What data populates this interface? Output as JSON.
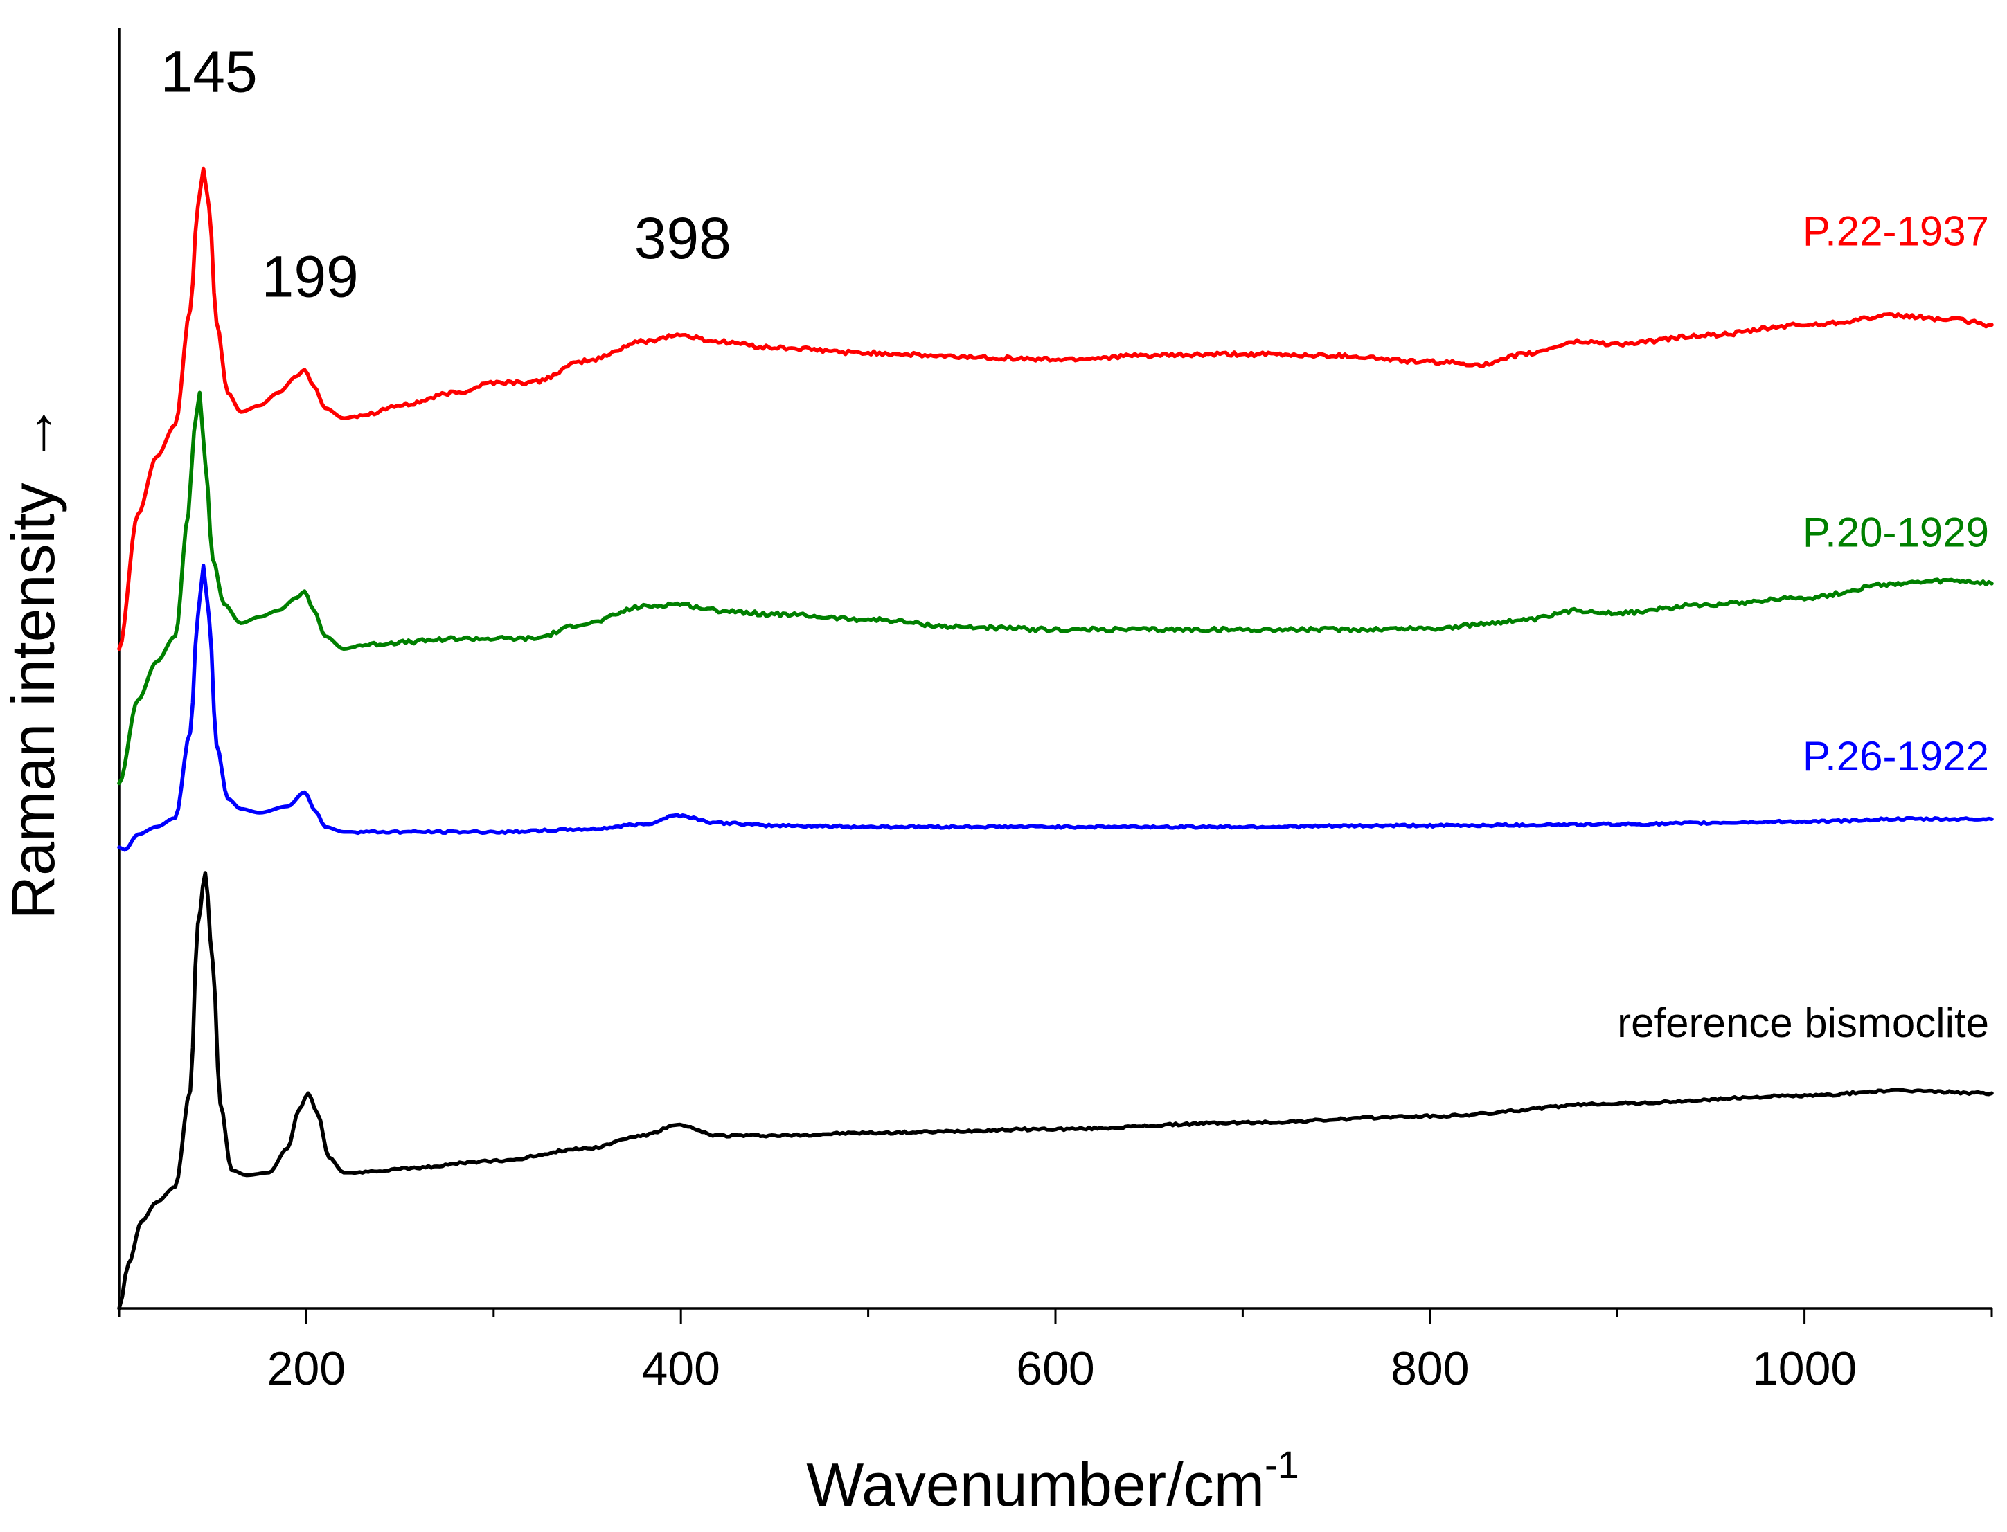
{
  "chart_data": {
    "type": "line",
    "title": "",
    "xlabel": "Wavenumber/cm",
    "xlabel_superscript": "-1",
    "ylabel": "Raman intensity",
    "ylabel_arrow": "→",
    "xlim": [
      100,
      1100
    ],
    "ylim": [
      0,
      100
    ],
    "xticks_major": [
      200,
      400,
      600,
      800,
      1000
    ],
    "xticks_minor": [
      100,
      300,
      500,
      700,
      900,
      1100
    ],
    "grid": false,
    "legend": "inline labels at right end of each trace",
    "peak_annotations": [
      {
        "label": "145",
        "x": 145,
        "y": 95
      },
      {
        "label": "199",
        "x": 199,
        "y": 79
      },
      {
        "label": "398",
        "x": 398,
        "y": 82
      }
    ],
    "series": [
      {
        "name": "P.22-1937",
        "color": "#ff0000",
        "x": [
          100,
          110,
          120,
          130,
          138,
          142,
          145,
          148,
          152,
          158,
          165,
          175,
          185,
          195,
          199,
          204,
          210,
          220,
          230,
          250,
          280,
          300,
          320,
          350,
          380,
          398,
          420,
          450,
          500,
          550,
          600,
          650,
          700,
          750,
          800,
          830,
          850,
          880,
          900,
          950,
          1000,
          1050,
          1080,
          1100
        ],
        "values": [
          51.5,
          62.0,
          66.5,
          69.0,
          78.0,
          86.0,
          89.0,
          86.0,
          77.0,
          71.5,
          70.0,
          70.5,
          71.5,
          72.8,
          73.3,
          72.0,
          70.3,
          69.5,
          69.8,
          70.5,
          71.5,
          72.3,
          72.3,
          74.0,
          75.5,
          76.0,
          75.5,
          75.0,
          74.6,
          74.3,
          74.1,
          74.4,
          74.5,
          74.4,
          73.9,
          73.7,
          74.5,
          75.5,
          75.3,
          76.0,
          76.8,
          77.5,
          77.2,
          76.8
        ]
      },
      {
        "name": "P.20-1929",
        "color": "#008000",
        "x": [
          100,
          110,
          120,
          130,
          137,
          140,
          143,
          146,
          150,
          156,
          165,
          175,
          185,
          195,
          199,
          204,
          210,
          220,
          230,
          250,
          280,
          300,
          320,
          350,
          380,
          398,
          420,
          450,
          500,
          550,
          600,
          650,
          700,
          750,
          800,
          850,
          880,
          900,
          950,
          1000,
          1050,
          1080,
          1100
        ],
        "values": [
          41.0,
          47.5,
          50.5,
          52.5,
          62.0,
          68.5,
          71.5,
          66.0,
          58.5,
          55.0,
          53.5,
          54.0,
          54.5,
          55.5,
          56.0,
          54.5,
          52.5,
          51.5,
          51.8,
          52.0,
          52.3,
          52.3,
          52.3,
          53.5,
          54.8,
          55.0,
          54.5,
          54.2,
          53.8,
          53.2,
          53.0,
          53.0,
          53.0,
          53.0,
          53.1,
          53.7,
          54.5,
          54.3,
          55.0,
          55.5,
          56.6,
          56.8,
          56.6
        ]
      },
      {
        "name": "P.26-1922",
        "color": "#0000ff",
        "x": [
          100,
          103,
          110,
          120,
          130,
          138,
          142,
          145,
          148,
          152,
          158,
          165,
          175,
          190,
          199,
          205,
          210,
          220,
          250,
          300,
          350,
          380,
          398,
          420,
          450,
          500,
          600,
          700,
          800,
          900,
          1000,
          1050,
          1100
        ],
        "values": [
          36.0,
          35.8,
          37.0,
          37.6,
          38.3,
          45.0,
          54.0,
          58.0,
          54.0,
          44.0,
          39.8,
          39.0,
          38.7,
          39.2,
          40.3,
          38.8,
          37.6,
          37.2,
          37.2,
          37.2,
          37.4,
          37.8,
          38.5,
          37.9,
          37.7,
          37.6,
          37.6,
          37.6,
          37.7,
          37.8,
          38.0,
          38.2,
          38.2
        ]
      },
      {
        "name": "reference bismoclite",
        "color": "#000000",
        "x": [
          100,
          105,
          112,
          120,
          130,
          138,
          142,
          146,
          150,
          154,
          160,
          168,
          180,
          190,
          196,
          201,
          206,
          212,
          220,
          230,
          250,
          300,
          350,
          380,
          398,
          420,
          450,
          500,
          600,
          700,
          800,
          900,
          1000,
          1050,
          1100
        ],
        "values": [
          0.0,
          3.5,
          6.8,
          8.3,
          9.5,
          17.0,
          30.0,
          34.0,
          27.0,
          16.0,
          10.8,
          10.4,
          10.6,
          12.5,
          15.5,
          16.8,
          15.2,
          11.8,
          10.6,
          10.6,
          10.9,
          11.5,
          12.5,
          13.5,
          14.3,
          13.5,
          13.5,
          13.7,
          14.0,
          14.5,
          15.0,
          16.0,
          16.6,
          17.0,
          16.8
        ]
      }
    ]
  }
}
